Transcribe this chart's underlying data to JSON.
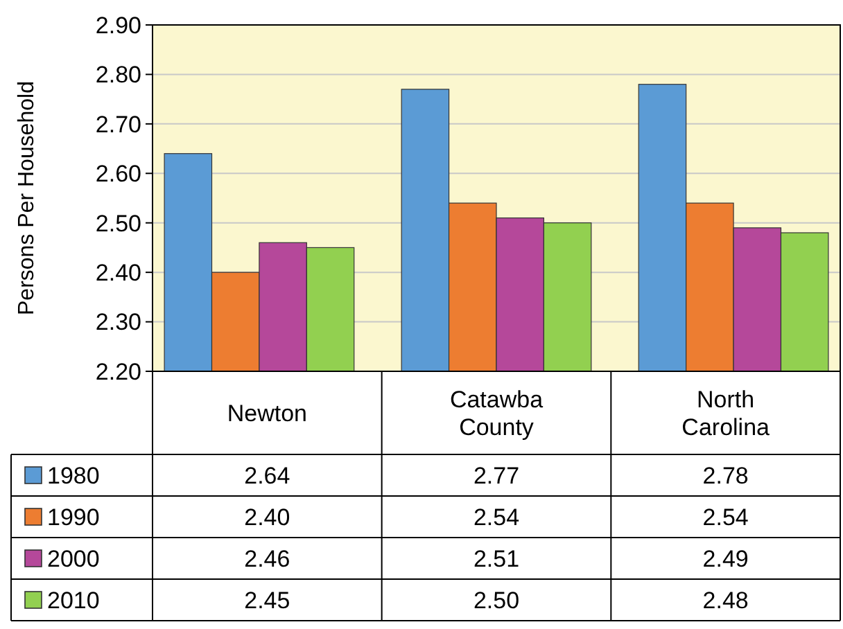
{
  "chart_data": {
    "type": "bar",
    "ylabel": "Persons Per Household",
    "categories": [
      "Newton",
      "Catawba County",
      "North Carolina"
    ],
    "series": [
      {
        "name": "1980",
        "color": "#5b9bd5",
        "values": [
          2.64,
          2.77,
          2.78
        ],
        "value_labels": [
          "2.64",
          "2.77",
          "2.78"
        ]
      },
      {
        "name": "1990",
        "color": "#ed7d31",
        "values": [
          2.4,
          2.54,
          2.54
        ],
        "value_labels": [
          "2.40",
          "2.54",
          "2.54"
        ]
      },
      {
        "name": "2000",
        "color": "#b5489a",
        "values": [
          2.46,
          2.51,
          2.49
        ],
        "value_labels": [
          "2.46",
          "2.51",
          "2.49"
        ]
      },
      {
        "name": "2010",
        "color": "#92d050",
        "values": [
          2.45,
          2.5,
          2.48
        ],
        "value_labels": [
          "2.45",
          "2.50",
          "2.48"
        ]
      }
    ],
    "ylim": [
      2.2,
      2.9
    ],
    "yticks": [
      {
        "value": 2.2,
        "label": "2.20"
      },
      {
        "value": 2.3,
        "label": "2.30"
      },
      {
        "value": 2.4,
        "label": "2.40"
      },
      {
        "value": 2.5,
        "label": "2.50"
      },
      {
        "value": 2.6,
        "label": "2.60"
      },
      {
        "value": 2.7,
        "label": "2.70"
      },
      {
        "value": 2.8,
        "label": "2.80"
      },
      {
        "value": 2.9,
        "label": "2.90"
      }
    ],
    "grid": "y",
    "legend": "bottom left"
  }
}
